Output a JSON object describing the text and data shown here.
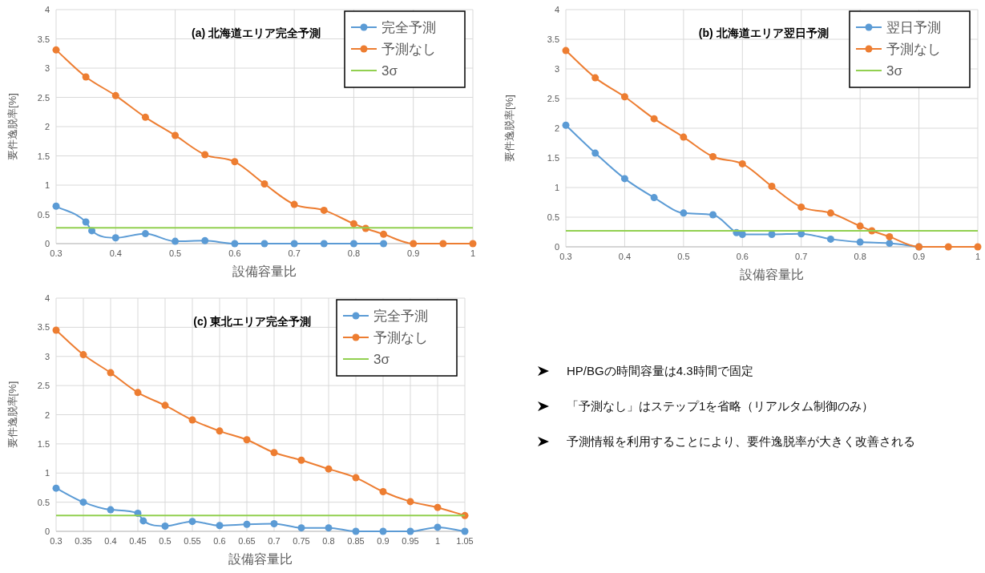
{
  "chart_data": [
    {
      "type": "line",
      "title": "(a) 北海道エリア完全予測",
      "xlabel": "設備容量比",
      "ylabel": "要件逸脱率[%]",
      "xlim": [
        0.3,
        1
      ],
      "xticks": [
        0.3,
        0.4,
        0.5,
        0.6,
        0.7,
        0.8,
        0.9,
        1
      ],
      "ylim": [
        0,
        4
      ],
      "yticks": [
        0,
        0.5,
        1,
        1.5,
        2,
        2.5,
        3,
        3.5,
        4
      ],
      "grid": true,
      "legend": "top right",
      "marker": "circle",
      "series": [
        {
          "name": "完全予測",
          "color": "#5b9bd5",
          "x": [
            0.3,
            0.35,
            0.36,
            0.4,
            0.45,
            0.5,
            0.55,
            0.6,
            0.65,
            0.7,
            0.75,
            0.8,
            0.85
          ],
          "values": [
            0.64,
            0.37,
            0.22,
            0.1,
            0.17,
            0.04,
            0.05,
            0,
            0,
            0,
            0,
            0,
            0
          ]
        },
        {
          "name": "予測なし",
          "color": "#ed7d31",
          "x": [
            0.3,
            0.35,
            0.4,
            0.45,
            0.5,
            0.55,
            0.6,
            0.65,
            0.7,
            0.75,
            0.8,
            0.82,
            0.85,
            0.9,
            0.95,
            1
          ],
          "values": [
            3.31,
            2.85,
            2.53,
            2.16,
            1.85,
            1.52,
            1.4,
            1.02,
            0.67,
            0.57,
            0.34,
            0.26,
            0.16,
            0,
            0,
            0
          ]
        },
        {
          "name": "3σ",
          "color": "#92d050",
          "marker": "none",
          "x": [
            0.3,
            1
          ],
          "values": [
            0.27,
            0.27
          ]
        }
      ]
    },
    {
      "type": "line",
      "title": "(b) 北海道エリア翌日予測",
      "xlabel": "設備容量比",
      "ylabel": "要件逸脱率[%]",
      "xlim": [
        0.3,
        1
      ],
      "xticks": [
        0.3,
        0.4,
        0.5,
        0.6,
        0.7,
        0.8,
        0.9,
        1
      ],
      "ylim": [
        0,
        4
      ],
      "yticks": [
        0,
        0.5,
        1,
        1.5,
        2,
        2.5,
        3,
        3.5,
        4
      ],
      "grid": true,
      "legend": "top right",
      "marker": "circle",
      "series": [
        {
          "name": "翌日予測",
          "color": "#5b9bd5",
          "x": [
            0.3,
            0.35,
            0.4,
            0.45,
            0.5,
            0.55,
            0.59,
            0.6,
            0.65,
            0.7,
            0.75,
            0.8,
            0.85,
            0.9
          ],
          "values": [
            2.05,
            1.58,
            1.15,
            0.83,
            0.57,
            0.54,
            0.24,
            0.21,
            0.21,
            0.22,
            0.13,
            0.08,
            0.06,
            0
          ]
        },
        {
          "name": "予測なし",
          "color": "#ed7d31",
          "x": [
            0.3,
            0.35,
            0.4,
            0.45,
            0.5,
            0.55,
            0.6,
            0.65,
            0.7,
            0.75,
            0.8,
            0.82,
            0.85,
            0.9,
            0.95,
            1
          ],
          "values": [
            3.31,
            2.85,
            2.53,
            2.16,
            1.85,
            1.52,
            1.4,
            1.02,
            0.67,
            0.57,
            0.35,
            0.27,
            0.17,
            0,
            0,
            0
          ]
        },
        {
          "name": "3σ",
          "color": "#92d050",
          "marker": "none",
          "x": [
            0.3,
            1
          ],
          "values": [
            0.27,
            0.27
          ]
        }
      ]
    },
    {
      "type": "line",
      "title": "(c) 東北エリア完全予測",
      "xlabel": "設備容量比",
      "ylabel": "要件逸脱率[%]",
      "xlim": [
        0.3,
        1.05
      ],
      "xticks": [
        0.3,
        0.35,
        0.4,
        0.45,
        0.5,
        0.55,
        0.6,
        0.65,
        0.7,
        0.75,
        0.8,
        0.85,
        0.9,
        0.95,
        1,
        1.05
      ],
      "ylim": [
        0,
        4
      ],
      "yticks": [
        0,
        0.5,
        1,
        1.5,
        2,
        2.5,
        3,
        3.5,
        4
      ],
      "grid": true,
      "legend": "top right",
      "marker": "circle",
      "series": [
        {
          "name": "完全予測",
          "color": "#5b9bd5",
          "x": [
            0.3,
            0.35,
            0.4,
            0.45,
            0.46,
            0.5,
            0.55,
            0.6,
            0.65,
            0.7,
            0.75,
            0.8,
            0.85,
            0.9,
            0.95,
            1,
            1.05
          ],
          "values": [
            0.74,
            0.5,
            0.37,
            0.31,
            0.18,
            0.09,
            0.17,
            0.1,
            0.12,
            0.13,
            0.06,
            0.06,
            0,
            0,
            0,
            0.07,
            0
          ]
        },
        {
          "name": "予測なし",
          "color": "#ed7d31",
          "x": [
            0.3,
            0.35,
            0.4,
            0.45,
            0.5,
            0.55,
            0.6,
            0.65,
            0.7,
            0.75,
            0.8,
            0.85,
            0.9,
            0.95,
            1,
            1.05
          ],
          "values": [
            3.45,
            3.03,
            2.72,
            2.38,
            2.16,
            1.91,
            1.72,
            1.57,
            1.35,
            1.22,
            1.07,
            0.92,
            0.68,
            0.51,
            0.41,
            0.27
          ]
        },
        {
          "name": "3σ",
          "color": "#92d050",
          "marker": "none",
          "x": [
            0.3,
            1.05
          ],
          "values": [
            0.27,
            0.27
          ]
        }
      ]
    },
    {
      "type": "other",
      "annotations": [
        "HP/BGの時間容量は4.3時間で固定",
        "「予測なし」はステップ1を省略（リアルタム制御のみ）",
        "予測情報を利用することにより、要件逸脱率が大きく改善される"
      ]
    }
  ]
}
